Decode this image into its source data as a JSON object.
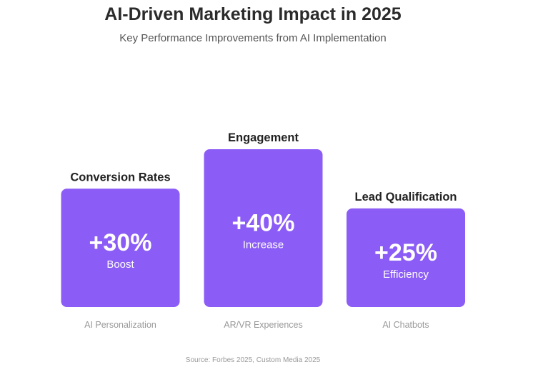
{
  "header": {
    "title": "AI-Driven Marketing Impact in 2025",
    "subtitle": "Key Performance Improvements from AI Implementation"
  },
  "chart_data": {
    "type": "bar",
    "title": "AI-Driven Marketing Impact in 2025",
    "subtitle": "Key Performance Improvements from AI Implementation",
    "categories": [
      "AI Personalization",
      "AR/VR Experiences",
      "AI Chatbots"
    ],
    "series": [
      {
        "values": [
          30,
          40,
          25
        ]
      }
    ],
    "bar_titles": [
      "Conversion Rates",
      "Engagement",
      "Lead Qualification"
    ],
    "value_labels": [
      "+30%",
      "+40%",
      "+25%"
    ],
    "value_captions": [
      "Boost",
      "Increase",
      "Efficiency"
    ],
    "ylim": [
      0,
      40
    ],
    "grid": false,
    "legend": "none",
    "colors": {
      "bar": "#8b5cf6",
      "bar_text": "#ffffff",
      "bar_title": "#222222",
      "category": "#999999"
    }
  },
  "footer": {
    "source": "Source: Forbes 2025, Custom Media 2025"
  }
}
